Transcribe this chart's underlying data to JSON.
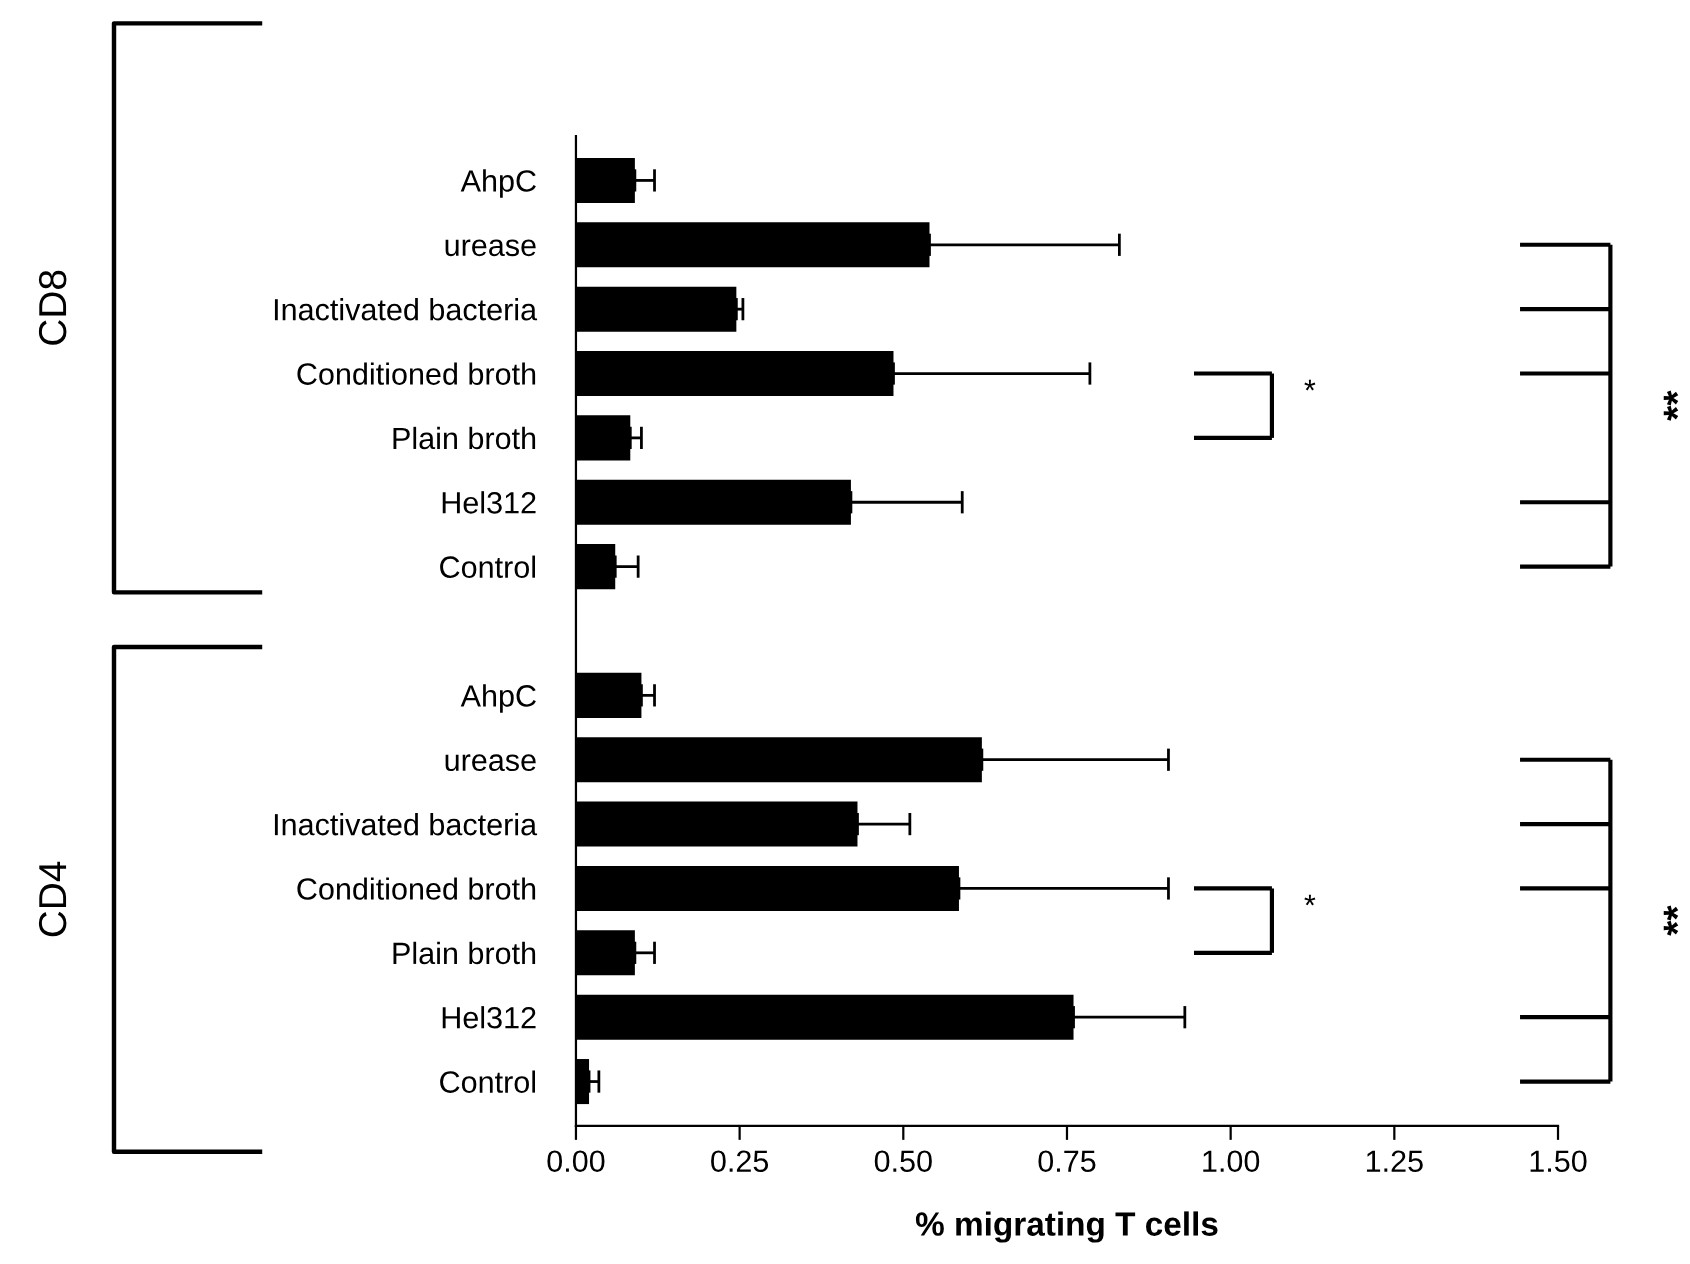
{
  "chart_data": {
    "type": "bar",
    "orientation": "horizontal",
    "xlabel": "% migrating T cells",
    "categories": [
      "AhpC",
      "urease",
      "Inactivated bacteria",
      "Conditioned broth",
      "Plain broth",
      "Hel312",
      "Control",
      null,
      "AhpC",
      "urease",
      "Inactivated bacteria",
      "Conditioned broth",
      "Plain broth",
      "Hel312",
      "Control"
    ],
    "values": [
      0.09,
      0.54,
      0.245,
      0.485,
      0.083,
      0.42,
      0.06,
      null,
      0.1,
      0.62,
      0.43,
      0.585,
      0.09,
      0.76,
      0.02
    ],
    "errors": [
      [
        0.09,
        0.12
      ],
      [
        0.54,
        0.83
      ],
      [
        0.245,
        0.255
      ],
      [
        0.485,
        0.785
      ],
      [
        0.083,
        0.1
      ],
      [
        0.42,
        0.59
      ],
      [
        0.06,
        0.095
      ],
      null,
      [
        0.1,
        0.12
      ],
      [
        0.62,
        0.905
      ],
      [
        0.43,
        0.51
      ],
      [
        0.585,
        0.905
      ],
      [
        0.09,
        0.12
      ],
      [
        0.76,
        0.93
      ],
      [
        0.02,
        0.035
      ]
    ],
    "color": "#000000",
    "xlim": [
      0,
      1.5
    ],
    "xticks": [
      {
        "value": 0,
        "label": "0.00"
      },
      {
        "value": 0.25,
        "label": "0.25"
      },
      {
        "value": 0.5,
        "label": "0.50"
      },
      {
        "value": 0.75,
        "label": "0.75"
      },
      {
        "value": 1.0,
        "label": "1.00"
      },
      {
        "value": 1.25,
        "label": "1.25"
      },
      {
        "value": 1.5,
        "label": "1.50"
      }
    ],
    "grid": false,
    "legend": false,
    "annotations": [
      "CD8",
      "CD4",
      "*",
      "*",
      "**",
      "**"
    ]
  }
}
